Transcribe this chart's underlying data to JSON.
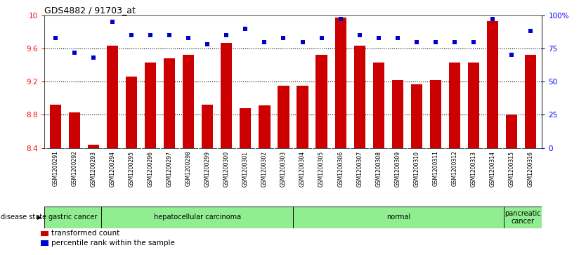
{
  "title": "GDS4882 / 91703_at",
  "categories": [
    "GSM1200291",
    "GSM1200292",
    "GSM1200293",
    "GSM1200294",
    "GSM1200295",
    "GSM1200296",
    "GSM1200297",
    "GSM1200298",
    "GSM1200299",
    "GSM1200300",
    "GSM1200301",
    "GSM1200302",
    "GSM1200303",
    "GSM1200304",
    "GSM1200305",
    "GSM1200306",
    "GSM1200307",
    "GSM1200308",
    "GSM1200309",
    "GSM1200310",
    "GSM1200311",
    "GSM1200312",
    "GSM1200313",
    "GSM1200314",
    "GSM1200315",
    "GSM1200316"
  ],
  "bar_values": [
    8.92,
    8.83,
    8.44,
    9.63,
    9.26,
    9.43,
    9.48,
    9.52,
    8.92,
    9.67,
    8.88,
    8.91,
    9.15,
    9.15,
    9.52,
    9.97,
    9.63,
    9.43,
    9.22,
    9.17,
    9.22,
    9.43,
    9.43,
    9.93,
    8.8,
    9.52
  ],
  "percentile_values": [
    83,
    72,
    68,
    95,
    85,
    85,
    85,
    83,
    78,
    85,
    90,
    80,
    83,
    80,
    83,
    97,
    85,
    83,
    83,
    80,
    80,
    80,
    80,
    97,
    70,
    88
  ],
  "ymin": 8.4,
  "ymax": 10.0,
  "yticks_left": [
    8.4,
    8.8,
    9.2,
    9.6,
    10.0
  ],
  "ytick_labels_left": [
    "8.4",
    "8.8",
    "9.2",
    "9.6",
    "10"
  ],
  "yticks_right_pct": [
    0,
    25,
    50,
    75,
    100
  ],
  "ytick_labels_right": [
    "0",
    "25",
    "50",
    "75",
    "100%"
  ],
  "bar_color": "#cc0000",
  "percentile_color": "#0000cc",
  "disease_groups": [
    {
      "label": "gastric cancer",
      "start": 0,
      "end": 3
    },
    {
      "label": "hepatocellular carcinoma",
      "start": 3,
      "end": 13
    },
    {
      "label": "normal",
      "start": 13,
      "end": 24
    },
    {
      "label": "pancreatic\ncancer",
      "start": 24,
      "end": 26
    }
  ],
  "disease_bg_color": "#90EE90",
  "legend_items": [
    {
      "label": "transformed count",
      "color": "#cc0000"
    },
    {
      "label": "percentile rank within the sample",
      "color": "#0000cc"
    }
  ],
  "xtick_bg_color": "#d0d0d0"
}
